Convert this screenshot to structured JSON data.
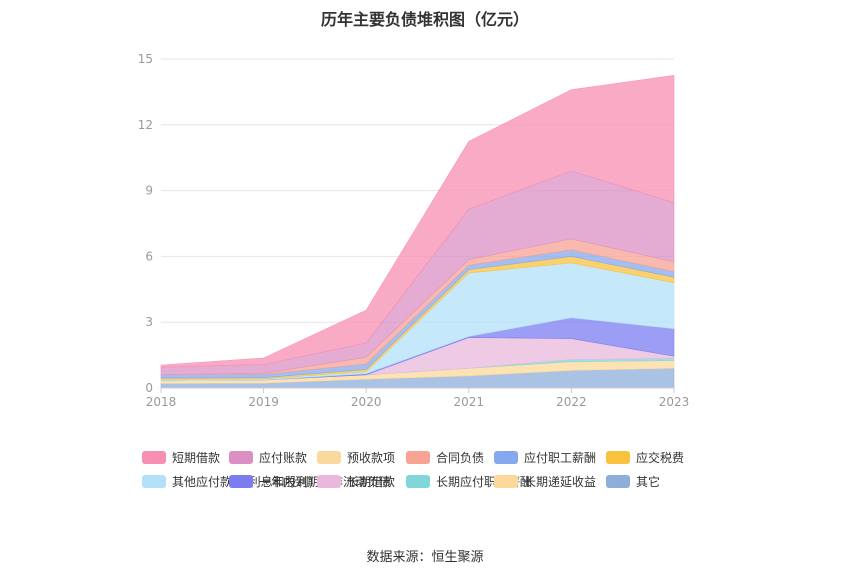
{
  "chart_data": {
    "type": "area",
    "title": "历年主要负债堆积图（亿元）",
    "categories": [
      "2018",
      "2019",
      "2020",
      "2021",
      "2022",
      "2023"
    ],
    "y_ticks": [
      0,
      3,
      6,
      9,
      12,
      15
    ],
    "ylim": [
      0,
      15
    ],
    "grid": true,
    "legend_position": "bottom",
    "series": [
      {
        "name": "短期借款",
        "color": "#F78FB3",
        "values": [
          0.1,
          0.3,
          1.5,
          3.1,
          3.7,
          5.8
        ]
      },
      {
        "name": "应付账款",
        "color": "#DB8FC4",
        "values": [
          0.35,
          0.4,
          0.65,
          2.3,
          3.1,
          2.7
        ]
      },
      {
        "name": "预收款项",
        "color": "#FBD89D",
        "values": [
          0.0,
          0.0,
          0.0,
          0.0,
          0.0,
          0.0
        ]
      },
      {
        "name": "合同负债",
        "color": "#F8A294",
        "values": [
          0.0,
          0.05,
          0.3,
          0.25,
          0.5,
          0.45
        ]
      },
      {
        "name": "应付职工薪酬",
        "color": "#86A8EE",
        "values": [
          0.15,
          0.15,
          0.25,
          0.2,
          0.3,
          0.25
        ]
      },
      {
        "name": "应交税费",
        "color": "#F9C23C",
        "values": [
          0.05,
          0.05,
          0.1,
          0.15,
          0.3,
          0.25
        ]
      },
      {
        "name": "其他应付款(含利息和股利)",
        "color": "#B3E0F9",
        "values": [
          0.05,
          0.05,
          0.1,
          2.9,
          2.5,
          2.1
        ]
      },
      {
        "name": "一年内到期的非流动负债",
        "color": "#7B7CF0",
        "values": [
          0.0,
          0.0,
          0.05,
          0.05,
          0.95,
          1.25
        ]
      },
      {
        "name": "长期借款",
        "color": "#E9B8DC",
        "values": [
          0.0,
          0.0,
          0.0,
          1.4,
          0.95,
          0.1
        ]
      },
      {
        "name": "长期应付职工薪酬",
        "color": "#80D6D9",
        "values": [
          0.0,
          0.0,
          0.0,
          0.0,
          0.1,
          0.1
        ]
      },
      {
        "name": "长期递延收益",
        "color": "#FCD99B",
        "values": [
          0.15,
          0.15,
          0.2,
          0.35,
          0.4,
          0.35
        ]
      },
      {
        "name": "其它",
        "color": "#8EAED9",
        "values": [
          0.2,
          0.22,
          0.4,
          0.55,
          0.8,
          0.9
        ]
      }
    ]
  },
  "source_text": "数据来源：恒生聚源"
}
